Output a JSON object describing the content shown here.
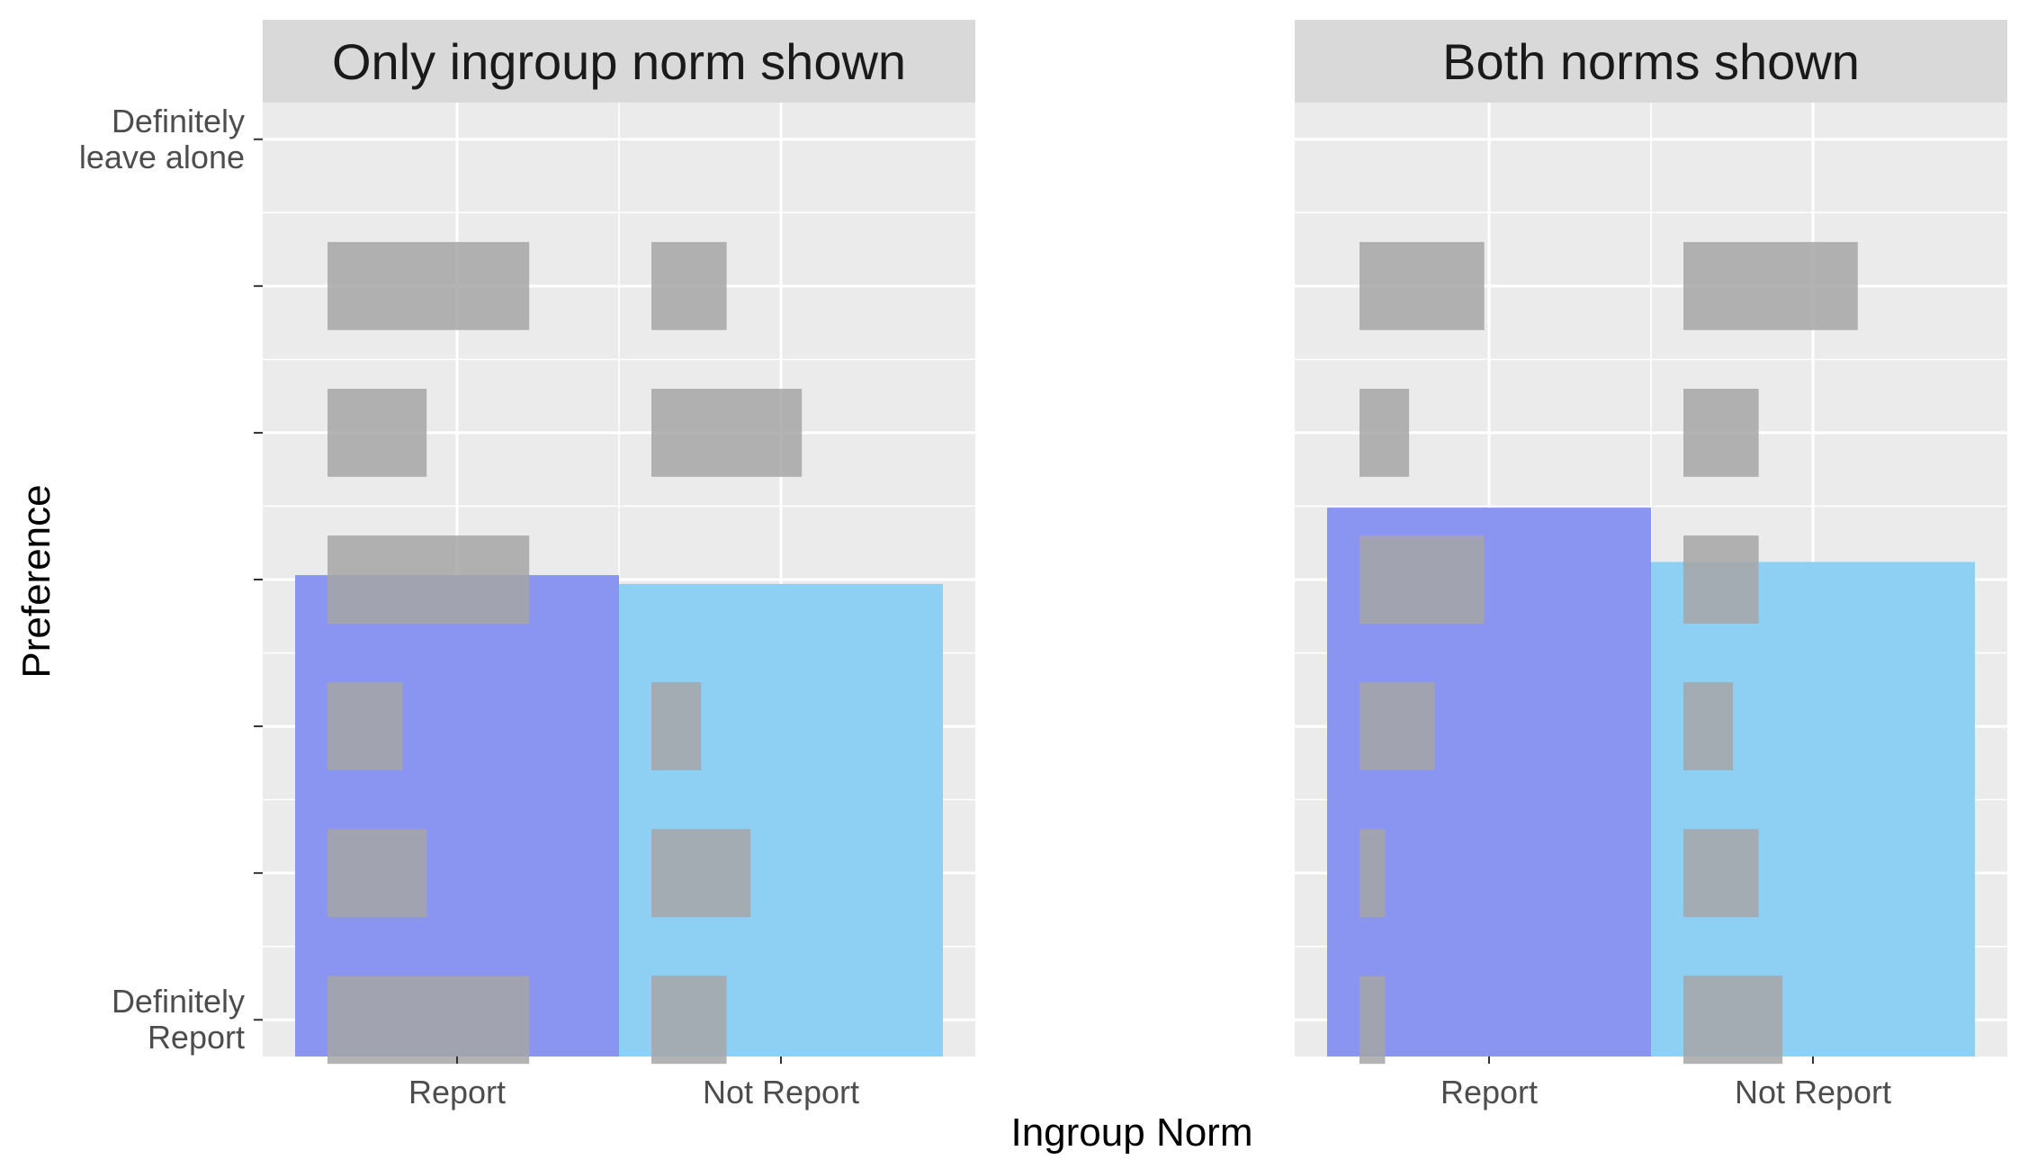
{
  "chart_data": {
    "type": "bar",
    "xlabel": "Ingroup Norm",
    "ylabel": "Preference",
    "categories": [
      "Report",
      "Not Report"
    ],
    "y_levels": 7,
    "y_tick_labels": [
      [
        "Definitely",
        "Report"
      ],
      "",
      "",
      "",
      "",
      "",
      [
        "Definitely",
        "leave alone"
      ]
    ],
    "ylim": [
      0.75,
      7.25
    ],
    "grid": true,
    "legend": "none",
    "colors": {
      "panel_bg": "#ebebeb",
      "strip_bg": "#d9d9d9",
      "grid": "#ffffff",
      "histogram": "#a6a6a6",
      "Report": "#8a95f2",
      "Not Report": "#8ecff4"
    },
    "panels": [
      {
        "title": "Only ingroup norm shown",
        "means": {
          "Report": 4.03,
          "Not Report": 3.97
        },
        "distribution": {
          "Report": [
            0.118,
            0.058,
            0.044,
            0.118,
            0.058,
            0.118
          ],
          "Not Report": [
            0.044,
            0.058,
            0.029,
            0.0,
            0.088,
            0.044
          ]
        }
      },
      {
        "title": "Both norms shown",
        "means": {
          "Report": 4.49,
          "Not Report": 4.12
        },
        "distribution": {
          "Report": [
            0.015,
            0.015,
            0.044,
            0.073,
            0.029,
            0.073
          ],
          "Not Report": [
            0.058,
            0.044,
            0.029,
            0.044,
            0.044,
            0.102
          ]
        }
      }
    ]
  }
}
